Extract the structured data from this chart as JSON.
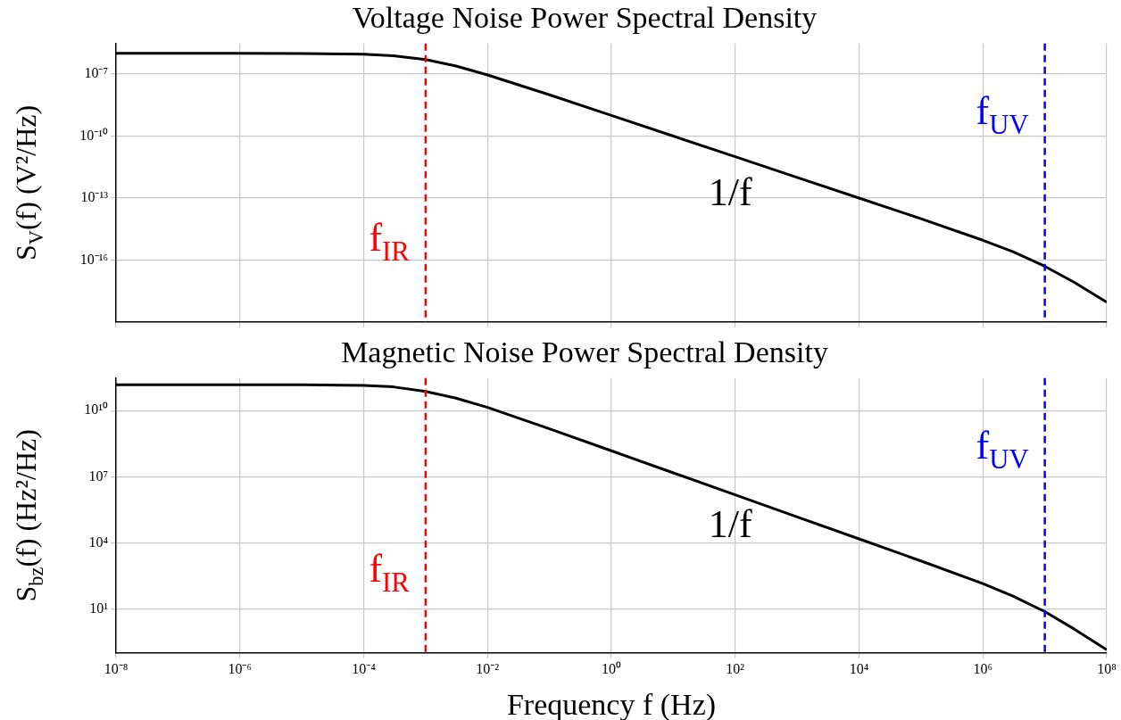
{
  "chart_data": [
    {
      "type": "line",
      "title": "Voltage Noise Power Spectral Density",
      "ylabel": "S$_{V}$(f) (V²/Hz)",
      "log": "xy",
      "grid": true,
      "legend": false,
      "tick_labels": "y",
      "marker": "none",
      "x": [
        1e-08,
        1e-06,
        1e-05,
        0.0001,
        0.0003,
        0.001,
        0.003,
        0.01,
        0.1,
        1,
        10,
        100,
        1000.0,
        10000.0,
        100000.0,
        1000000.0,
        3000000.0,
        10000000.0,
        30000000.0,
        100000000.0
      ],
      "series": [
        {
          "color": "#000000",
          "values": [
            1e-06,
            1e-06,
            9.9e-07,
            9.1e-07,
            7.7e-07,
            5e-07,
            2.5e-07,
            9.1e-08,
            9.9e-09,
            1e-09,
            1e-10,
            1e-11,
            1e-12,
            1e-13,
            1e-14,
            9.1e-16,
            2.6e-16,
            5e-17,
            8.3e-18,
            9.1e-19
          ]
        }
      ],
      "xlim": [
        1e-08,
        100000000.0
      ],
      "xticks": [
        {
          "value": 1e-08,
          "label": null
        },
        {
          "value": 1e-06,
          "label": null
        },
        {
          "value": 0.0001,
          "label": null
        },
        {
          "value": 0.01,
          "label": null
        },
        {
          "value": 1,
          "label": null
        },
        {
          "value": 100,
          "label": null
        },
        {
          "value": 10000.0,
          "label": null
        },
        {
          "value": 1000000.0,
          "label": null
        },
        {
          "value": 100000000.0,
          "label": null
        }
      ],
      "ylim": [
        1e-19,
        3e-06
      ],
      "yticks": [
        {
          "value": 1e-16,
          "label": "10⁻¹⁶"
        },
        {
          "value": 1e-13,
          "label": "10⁻¹³"
        },
        {
          "value": 1e-10,
          "label": "10⁻¹⁰"
        },
        {
          "value": 1e-07,
          "label": "10⁻⁷"
        }
      ],
      "ref_lines": [
        {
          "axis": "x",
          "value": 0.001,
          "label": "f$_{IR}$",
          "color": "#ff0000",
          "line_style": "dashed"
        },
        {
          "axis": "x",
          "value": 10000000.0,
          "label": "f$_{UV}$",
          "color": "#0000ff",
          "line_style": "dashed"
        }
      ],
      "annotations": [
        "1/f"
      ]
    },
    {
      "type": "line",
      "title": "Magnetic Noise Power Spectral Density",
      "xlabel": "Frequency f (Hz)",
      "ylabel": "S$_{bz}$(f) (Hz²/Hz)",
      "log": "xy",
      "grid": true,
      "legend": false,
      "marker": "none",
      "x": [
        1e-08,
        1e-06,
        1e-05,
        0.0001,
        0.0003,
        0.001,
        0.003,
        0.01,
        0.1,
        1,
        10,
        100,
        1000.0,
        10000.0,
        100000.0,
        1000000.0,
        3000000.0,
        10000000.0,
        30000000.0,
        100000000.0
      ],
      "series": [
        {
          "color": "#000000",
          "values": [
            150000000000.0,
            150000000000.0,
            150000000000.0,
            140000000000.0,
            120000000000.0,
            75000000000.0,
            38000000000.0,
            14000000000.0,
            1500000000.0,
            150000000.0,
            15000000.0,
            1500000.0,
            150000.0,
            15000.0,
            1500.0,
            140,
            39,
            7.5,
            1.2,
            0.14
          ]
        }
      ],
      "xlim": [
        1e-08,
        100000000.0
      ],
      "xticks": [
        {
          "value": 1e-08,
          "label": "10⁻⁸"
        },
        {
          "value": 1e-06,
          "label": "10⁻⁶"
        },
        {
          "value": 0.0001,
          "label": "10⁻⁴"
        },
        {
          "value": 0.01,
          "label": "10⁻²"
        },
        {
          "value": 1,
          "label": "10⁰"
        },
        {
          "value": 100,
          "label": "10²"
        },
        {
          "value": 10000.0,
          "label": "10⁴"
        },
        {
          "value": 1000000.0,
          "label": "10⁶"
        },
        {
          "value": 100000000.0,
          "label": "10⁸"
        }
      ],
      "ylim": [
        0.1,
        300000000000.0
      ],
      "yticks": [
        {
          "value": 10,
          "label": "10¹"
        },
        {
          "value": 10000.0,
          "label": "10⁴"
        },
        {
          "value": 10000000.0,
          "label": "10⁷"
        },
        {
          "value": 10000000000.0,
          "label": "10¹⁰"
        }
      ],
      "ref_lines": [
        {
          "axis": "x",
          "value": 0.001,
          "label": "f$_{IR}$",
          "color": "#ff0000",
          "line_style": "dashed"
        },
        {
          "axis": "x",
          "value": 10000000.0,
          "label": "f$_{UV}$",
          "color": "#0000ff",
          "line_style": "dashed"
        }
      ],
      "annotations": [
        "1/f"
      ]
    }
  ]
}
